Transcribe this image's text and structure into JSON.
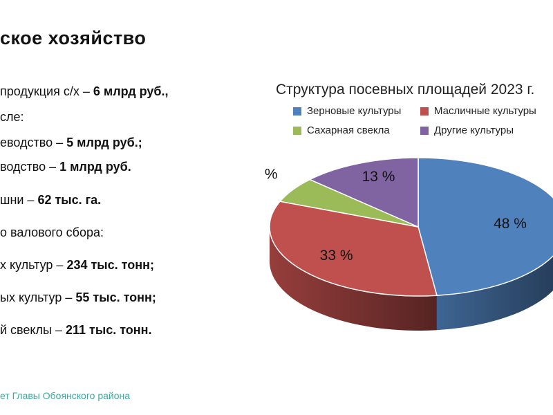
{
  "slide": {
    "title_fragment": "ское хозяйство",
    "footer": "ет Главы Обоянского района"
  },
  "stats": [
    {
      "prefix": "продукция с/х – ",
      "value": "6 млрд руб.,"
    },
    {
      "prefix": "сле:",
      "value": ""
    },
    {
      "prefix": "еводство – ",
      "value": "5 млрд руб.;"
    },
    {
      "prefix": "водство – ",
      "value": "1 млрд руб."
    },
    {
      "prefix": "шни – ",
      "value": "62 тыс. га."
    },
    {
      "prefix": "о валового сбора:",
      "value": ""
    },
    {
      "prefix": "х культур – ",
      "value": "234 тыс. тонн;"
    },
    {
      "prefix": "ых культур – ",
      "value": "55 тыс. тонн;"
    },
    {
      "prefix": "й свеклы – ",
      "value": "211 тыс. тонн."
    }
  ],
  "colors": {
    "grain": "#4f81bd",
    "oilseed": "#c0504d",
    "sugar_beet": "#9bbb59",
    "other": "#8064a2",
    "footer": "#3fa7a0"
  },
  "chart_data": {
    "type": "pie",
    "title": "Структура посевных площадей 2023 г.",
    "legend_position": "top",
    "slices": [
      {
        "name": "Зерновые культуры",
        "value": 48,
        "label": "48 %"
      },
      {
        "name": "Масличные культуры",
        "value": 33,
        "label": "33 %"
      },
      {
        "name": "Сахарная свекла",
        "value": 6,
        "label": "6 %"
      },
      {
        "name": "Другие культуры",
        "value": 13,
        "label": "13 %"
      }
    ]
  }
}
